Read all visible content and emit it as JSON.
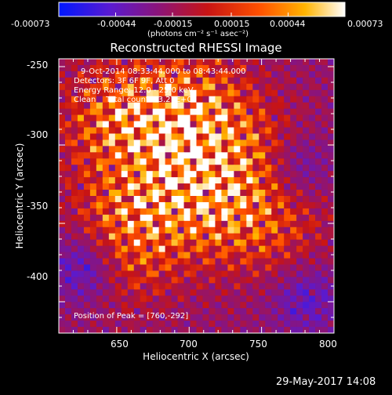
{
  "colorbar": {
    "tick_labels": [
      "-0.00073",
      "-0.00044",
      "-0.00015",
      "0.00015",
      "0.00044",
      "0.00073"
    ],
    "unit_text": "(photons cm⁻² s⁻¹ asec⁻²)",
    "min": -0.00073,
    "max": 0.00073
  },
  "plot": {
    "title": "Reconstructed RHESSI Image",
    "xlabel": "Heliocentric X (arcsec)",
    "ylabel": "Heliocentric Y (arcsec)",
    "x_ticks": [
      "650",
      "700",
      "750",
      "800"
    ],
    "y_ticks": [
      "-250",
      "-300",
      "-350",
      "-400"
    ],
    "xlim": [
      610,
      800
    ],
    "ylim": [
      -420,
      -245
    ]
  },
  "annotations": {
    "time_range": "9-Oct-2014 08:33:44.000 to 08:43:44.000",
    "detectors": "Detectors: 3F 6F 9F, Att 0",
    "energy": "Energy Range: 12.0 - 25.0 keV",
    "clean": "Clean    Total counts: 3.27E+03",
    "peak": "Position of Peak = [760,-292]"
  },
  "footer": {
    "timestamp": "29-May-2017 14:08"
  },
  "colors": {
    "background": "#000000",
    "text": "#ffffff",
    "colormap": [
      "#0018ff",
      "#5a1ad0",
      "#8c1478",
      "#c81414",
      "#ff5000",
      "#ffb400",
      "#ffffff"
    ]
  }
}
